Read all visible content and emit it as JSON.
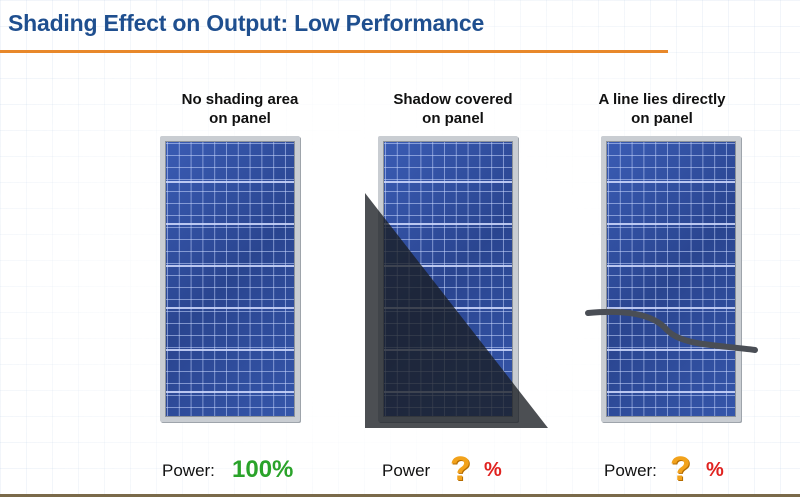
{
  "title": "Shading Effect on Output: Low Performance",
  "panels": [
    {
      "caption_line1": "No shading area",
      "caption_line2": "on panel",
      "power_label": "Power:",
      "power_value": "100%"
    },
    {
      "caption_line1": "Shadow covered",
      "caption_line2": "on panel",
      "power_label": "Power",
      "power_unknown": "?",
      "power_unit": "%"
    },
    {
      "caption_line1": "A line lies directly",
      "caption_line2": "on panel",
      "power_label": "Power:",
      "power_unknown": "?",
      "power_unit": "%"
    }
  ],
  "colors": {
    "title": "#1f4f8f",
    "title_rule": "#e8882a",
    "full_power": "#2aa32a",
    "unknown_mark": "#f2a21b",
    "percent": "#e0221f",
    "panel_cells": "#2f4d9c"
  }
}
